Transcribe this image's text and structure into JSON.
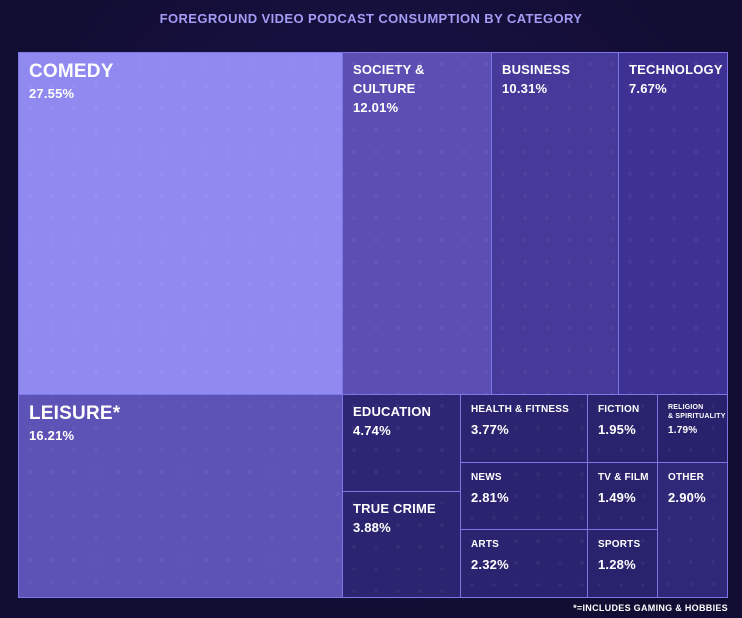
{
  "title": "FOREGROUND VIDEO PODCAST CONSUMPTION BY CATEGORY",
  "footnote": "*=INCLUDES GAMING & HOBBIES",
  "chart_data": {
    "type": "treemap",
    "title": "FOREGROUND VIDEO PODCAST CONSUMPTION BY CATEGORY",
    "unit": "%",
    "items": [
      {
        "label": "COMEDY",
        "value": 27.55,
        "display": "27.55%",
        "color": "#8f89f0"
      },
      {
        "label": "SOCIETY & CULTURE",
        "value": 12.01,
        "display": "12.01%",
        "color": "#5b4fb3"
      },
      {
        "label": "BUSINESS",
        "value": 10.31,
        "display": "10.31%",
        "color": "#453a99"
      },
      {
        "label": "TECHNOLOGY",
        "value": 7.67,
        "display": "7.67%",
        "color": "#3d3293"
      },
      {
        "label": "LEISURE*",
        "value": 16.21,
        "display": "16.21%",
        "color": "#5d52b5"
      },
      {
        "label": "EDUCATION",
        "value": 4.74,
        "display": "4.74%",
        "color": "#2d2674"
      },
      {
        "label": "TRUE CRIME",
        "value": 3.88,
        "display": "3.88%",
        "color": "#2b2470"
      },
      {
        "label": "HEALTH & FITNESS",
        "value": 3.77,
        "display": "3.77%",
        "color": "#2b2470"
      },
      {
        "label": "NEWS",
        "value": 2.81,
        "display": "2.81%",
        "color": "#2a2370"
      },
      {
        "label": "ARTS",
        "value": 2.32,
        "display": "2.32%",
        "color": "#2a2370"
      },
      {
        "label": "FICTION",
        "value": 1.95,
        "display": "1.95%",
        "color": "#29226d"
      },
      {
        "label": "RELIGION & SPIRITUALITY",
        "value": 1.79,
        "display": "1.79%",
        "color": "#28216b"
      },
      {
        "label": "TV & FILM",
        "value": 1.49,
        "display": "1.49%",
        "color": "#29226d"
      },
      {
        "label": "OTHER",
        "value": 2.9,
        "display": "2.90%",
        "color": "#2f2778"
      },
      {
        "label": "SPORTS",
        "value": 1.28,
        "display": "1.28%",
        "color": "#29226d"
      }
    ]
  }
}
